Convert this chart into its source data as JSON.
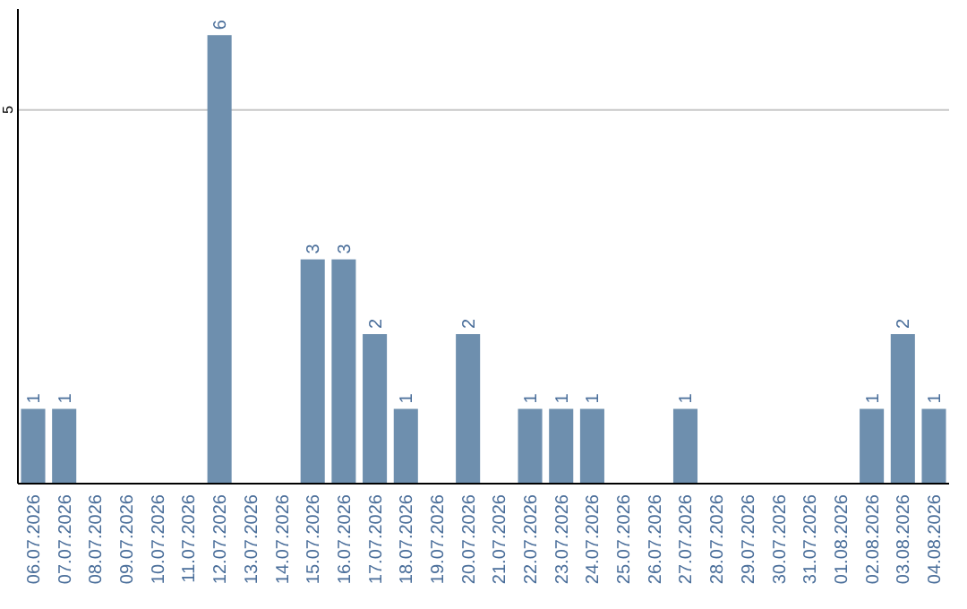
{
  "chart_data": {
    "type": "bar",
    "categories": [
      "06.07.2026",
      "07.07.2026",
      "08.07.2026",
      "09.07.2026",
      "10.07.2026",
      "11.07.2026",
      "12.07.2026",
      "13.07.2026",
      "14.07.2026",
      "15.07.2026",
      "16.07.2026",
      "17.07.2026",
      "18.07.2026",
      "19.07.2026",
      "20.07.2026",
      "21.07.2026",
      "22.07.2026",
      "23.07.2026",
      "24.07.2026",
      "25.07.2026",
      "26.07.2026",
      "27.07.2026",
      "28.07.2026",
      "29.07.2026",
      "30.07.2026",
      "31.07.2026",
      "01.08.2026",
      "02.08.2026",
      "03.08.2026",
      "04.08.2026"
    ],
    "values": [
      1,
      1,
      null,
      null,
      null,
      null,
      6,
      null,
      null,
      3,
      3,
      2,
      1,
      null,
      2,
      null,
      1,
      1,
      1,
      null,
      null,
      1,
      null,
      null,
      null,
      null,
      null,
      1,
      2,
      1
    ],
    "color": "#6e8fae",
    "ylim": [
      0,
      6.35
    ],
    "yticks": [
      5
    ],
    "grid": "y",
    "data_labels": true
  }
}
